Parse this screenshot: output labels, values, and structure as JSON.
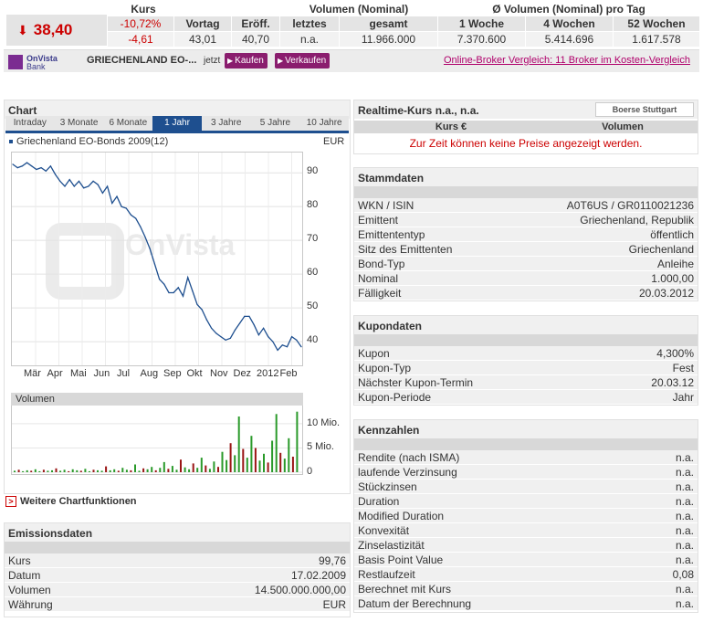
{
  "quote": {
    "kurs_header": "Kurs",
    "direction_icon": "down-arrow",
    "price": "38,40",
    "change_pct": "-10,72%",
    "change_abs": "-4,61",
    "vortag_label": "Vortag",
    "vortag": "43,01",
    "eroeff_label": "Eröff.",
    "eroeff": "40,70",
    "volumen_header": "Volumen (Nominal)",
    "letztes_label": "letztes",
    "letztes": "n.a.",
    "gesamt_label": "gesamt",
    "gesamt": "11.966.000",
    "avg_header": "Ø Volumen (Nominal) pro Tag",
    "woche_label": "1 Woche",
    "woche": "7.370.600",
    "wochen4_label": "4 Wochen",
    "wochen4": "5.414.696",
    "wochen52_label": "52 Wochen",
    "wochen52": "1.617.578",
    "colors": {
      "negative": "#cc0000",
      "band": "#e4e4e4"
    }
  },
  "broker_bar": {
    "bank_line1": "OnVista",
    "bank_line2": "Bank",
    "bond_name": "GRIECHENLAND EO-...",
    "jetzt": "jetzt",
    "buy_label": "Kaufen",
    "sell_label": "Verkaufen",
    "broker_link": "Online-Broker Vergleich: 11 Broker im Kosten-Vergleich",
    "colors": {
      "button": "#8a1d6e",
      "link": "#b0006b"
    }
  },
  "chart_panel": {
    "title": "Chart",
    "tabs": [
      "Intraday",
      "3 Monate",
      "6 Monate",
      "1 Jahr",
      "3 Jahre",
      "5 Jahre",
      "10 Jahre"
    ],
    "active_tab": "1 Jahr",
    "series_name": "Griechenland EO-Bonds 2009(12)",
    "currency": "EUR",
    "watermark": "OnVista",
    "volume_title": "Volumen",
    "more_link": "Weitere Chartfunktionen"
  },
  "chart_data": [
    {
      "type": "line",
      "title": "",
      "series": [
        {
          "name": "Griechenland EO-Bonds 2009(12)",
          "values": [
            92.5,
            91.5,
            92,
            93,
            92,
            91,
            91.5,
            90.5,
            92,
            89.5,
            87.5,
            86,
            88,
            86,
            87.5,
            85.5,
            86,
            87.5,
            86.5,
            84,
            86,
            81,
            83,
            80,
            79.5,
            77.5,
            76.5,
            74,
            71,
            67.5,
            63,
            58.5,
            57,
            54.5,
            54.5,
            56,
            53.5,
            59,
            55,
            51,
            49.5,
            46.5,
            44,
            42.5,
            41.5,
            40.5,
            41,
            43.5,
            45.5,
            47.5,
            47.5,
            45,
            42,
            44,
            41.5,
            40,
            37.5,
            39,
            38.5,
            41.5,
            40.5,
            38.5
          ]
        }
      ],
      "x_tick_labels": [
        "Mär",
        "Apr",
        "Mai",
        "Jun",
        "Jul",
        "Aug",
        "Sep",
        "Okt",
        "Nov",
        "Dez",
        "2012",
        "Feb"
      ],
      "y_ticks": [
        40,
        50,
        60,
        70,
        80,
        90
      ],
      "ylim": [
        33,
        96
      ],
      "grid": true,
      "color": "#1e4f8f"
    },
    {
      "type": "bar",
      "title": "",
      "y_tick_labels": [
        "10 Mio.",
        "5 Mio.",
        "0"
      ],
      "ylim": [
        0,
        13
      ],
      "series": [
        {
          "name": "Volumen",
          "values": [
            0.3,
            0.5,
            0.2,
            0.4,
            0.3,
            0.6,
            0.2,
            0.5,
            0.3,
            0.4,
            0.8,
            0.3,
            0.5,
            0.2,
            0.6,
            0.4,
            0.3,
            0.7,
            0.2,
            0.5,
            0.4,
            0.3,
            1.2,
            0.4,
            0.6,
            0.3,
            0.9,
            0.5,
            0.4,
            1.6,
            0.3,
            0.8,
            0.6,
            1.1,
            0.4,
            0.9,
            2.1,
            0.7,
            1.3,
            0.5,
            2.6,
            1.0,
            0.6,
            1.8,
            0.9,
            3.0,
            1.4,
            0.7,
            2.2,
            1.1,
            4.2,
            2.5,
            6.0,
            3.5,
            11.5,
            4.8,
            3.0,
            7.5,
            5.0,
            2.4,
            3.8,
            2.0,
            6.5,
            12.0,
            4.0,
            2.8,
            7.0,
            3.2,
            12.5
          ]
        }
      ],
      "colors": {
        "up": "#2a9a2a",
        "down": "#9a1515"
      }
    }
  ],
  "emission": {
    "title": "Emissionsdaten",
    "rows": [
      {
        "label": "Kurs",
        "value": "99,76"
      },
      {
        "label": "Datum",
        "value": "17.02.2009"
      },
      {
        "label": "Volumen",
        "value": "14.500.000.000,00"
      },
      {
        "label": "Währung",
        "value": "EUR"
      }
    ]
  },
  "realtime": {
    "title": "Realtime-Kurs n.a., n.a.",
    "exchange_logo": "Boerse Stuttgart",
    "col_kurs": "Kurs €",
    "col_volumen": "Volumen",
    "no_prices": "Zur Zeit können keine Preise angezeigt werden."
  },
  "stammdaten": {
    "title": "Stammdaten",
    "rows": [
      {
        "label": "WKN / ISIN",
        "value": "A0T6US / GR0110021236"
      },
      {
        "label": "Emittent",
        "value": "Griechenland, Republik"
      },
      {
        "label": "Emittententyp",
        "value": "öffentlich"
      },
      {
        "label": "Sitz des Emittenten",
        "value": "Griechenland"
      },
      {
        "label": "Bond-Typ",
        "value": "Anleihe"
      },
      {
        "label": "Nominal",
        "value": "1.000,00"
      },
      {
        "label": "Fälligkeit",
        "value": "20.03.2012"
      }
    ]
  },
  "kupondaten": {
    "title": "Kupondaten",
    "rows": [
      {
        "label": "Kupon",
        "value": "4,300%"
      },
      {
        "label": "Kupon-Typ",
        "value": "Fest"
      },
      {
        "label": "Nächster Kupon-Termin",
        "value": "20.03.12"
      },
      {
        "label": "Kupon-Periode",
        "value": "Jahr"
      }
    ]
  },
  "kennzahlen": {
    "title": "Kennzahlen",
    "rows": [
      {
        "label": "Rendite (nach ISMA)",
        "value": "n.a."
      },
      {
        "label": "laufende Verzinsung",
        "value": "n.a."
      },
      {
        "label": "Stückzinsen",
        "value": "n.a."
      },
      {
        "label": "Duration",
        "value": "n.a."
      },
      {
        "label": "Modified Duration",
        "value": "n.a."
      },
      {
        "label": "Konvexität",
        "value": "n.a."
      },
      {
        "label": "Zinselastizität",
        "value": "n.a."
      },
      {
        "label": "Basis Point Value",
        "value": "n.a."
      },
      {
        "label": "Restlaufzeit",
        "value": "0,08"
      },
      {
        "label": "Berechnet mit Kurs",
        "value": "n.a."
      },
      {
        "label": "Datum der Berechnung",
        "value": "n.a."
      }
    ]
  }
}
